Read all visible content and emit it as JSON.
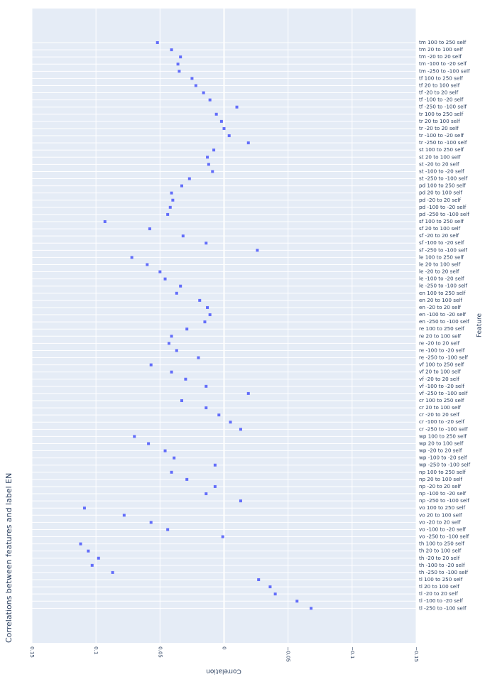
{
  "chart_data": {
    "type": "scatter",
    "title": "Correlations between features and label EN",
    "xlabel": "Correlation",
    "ylabel": "Feature",
    "x_range": [
      0.15,
      -0.15
    ],
    "x_ticks": [
      0.15,
      0.1,
      0.05,
      0,
      -0.05,
      -0.1,
      -0.15
    ],
    "x_tick_labels": [
      "0.15",
      "0.1",
      "0.05",
      "0",
      "−0.05",
      "−0.1",
      "−0.15"
    ],
    "grid": true,
    "marker_color": "#636efa",
    "plot_bg": "#e5ecf6",
    "points": [
      {
        "feature": "tm 100 to 250 self",
        "value": 0.052
      },
      {
        "feature": "tm 20 to 100 self",
        "value": 0.041
      },
      {
        "feature": "tm -20 to 20 self",
        "value": 0.034
      },
      {
        "feature": "tm -100 to -20 self",
        "value": 0.036
      },
      {
        "feature": "tm -250 to -100 self",
        "value": 0.035
      },
      {
        "feature": "tf 100 to 250 self",
        "value": 0.025
      },
      {
        "feature": "tf 20 to 100 self",
        "value": 0.022
      },
      {
        "feature": "tf -20 to 20 self",
        "value": 0.016
      },
      {
        "feature": "tf -100 to -20 self",
        "value": 0.011
      },
      {
        "feature": "tf -250 to -100 self",
        "value": -0.01
      },
      {
        "feature": "tr 100 to 250 self",
        "value": 0.006
      },
      {
        "feature": "tr 20 to 100 self",
        "value": 0.002
      },
      {
        "feature": "tr -20 to 20 self",
        "value": 0.0
      },
      {
        "feature": "tr -100 to -20 self",
        "value": -0.004
      },
      {
        "feature": "tr -250 to -100 self",
        "value": -0.019
      },
      {
        "feature": "st 100 to 250 self",
        "value": 0.008
      },
      {
        "feature": "st 20 to 100 self",
        "value": 0.013
      },
      {
        "feature": "st -20 to 20 self",
        "value": 0.012
      },
      {
        "feature": "st -100 to -20 self",
        "value": 0.009
      },
      {
        "feature": "st -250 to -100 self",
        "value": 0.027
      },
      {
        "feature": "pd 100 to 250 self",
        "value": 0.033
      },
      {
        "feature": "pd 20 to 100 self",
        "value": 0.041
      },
      {
        "feature": "pd -20 to 20 self",
        "value": 0.04
      },
      {
        "feature": "pd -100 to -20 self",
        "value": 0.042
      },
      {
        "feature": "pd -250 to -100 self",
        "value": 0.044
      },
      {
        "feature": "sf 100 to 250 self",
        "value": 0.093
      },
      {
        "feature": "sf 20 to 100 self",
        "value": 0.058
      },
      {
        "feature": "sf -20 to 20 self",
        "value": 0.032
      },
      {
        "feature": "sf -100 to -20 self",
        "value": 0.014
      },
      {
        "feature": "sf -250 to -100 self",
        "value": -0.026
      },
      {
        "feature": "le 100 to 250 self",
        "value": 0.072
      },
      {
        "feature": "le 20 to 100 self",
        "value": 0.06
      },
      {
        "feature": "le -20 to 20 self",
        "value": 0.05
      },
      {
        "feature": "le -100 to -20 self",
        "value": 0.046
      },
      {
        "feature": "le -250 to -100 self",
        "value": 0.034
      },
      {
        "feature": "en 100 to 250 self",
        "value": 0.037
      },
      {
        "feature": "en 20 to 100 self",
        "value": 0.019
      },
      {
        "feature": "en -20 to 20 self",
        "value": 0.013
      },
      {
        "feature": "en -100 to -20 self",
        "value": 0.011
      },
      {
        "feature": "en -250 to -100 self",
        "value": 0.015
      },
      {
        "feature": "re 100 to 250 self",
        "value": 0.029
      },
      {
        "feature": "re 20 to 100 self",
        "value": 0.041
      },
      {
        "feature": "re -20 to 20 self",
        "value": 0.043
      },
      {
        "feature": "re -100 to -20 self",
        "value": 0.037
      },
      {
        "feature": "re -250 to -100 self",
        "value": 0.02
      },
      {
        "feature": "vf 100 to 250 self",
        "value": 0.057
      },
      {
        "feature": "vf 20 to 100 self",
        "value": 0.041
      },
      {
        "feature": "vf -20 to 20 self",
        "value": 0.03
      },
      {
        "feature": "vf -100 to -20 self",
        "value": 0.014
      },
      {
        "feature": "vf -250 to -100 self",
        "value": -0.019
      },
      {
        "feature": "cr 100 to 250 self",
        "value": 0.033
      },
      {
        "feature": "cr 20 to 100 self",
        "value": 0.014
      },
      {
        "feature": "cr -20 to 20 self",
        "value": 0.004
      },
      {
        "feature": "cr -100 to -20 self",
        "value": -0.005
      },
      {
        "feature": "cr -250 to -100 self",
        "value": -0.013
      },
      {
        "feature": "wp 100 to 250 self",
        "value": 0.07
      },
      {
        "feature": "wp 20 to 100 self",
        "value": 0.059
      },
      {
        "feature": "wp -20 to 20 self",
        "value": 0.046
      },
      {
        "feature": "wp -100 to -20 self",
        "value": 0.039
      },
      {
        "feature": "wp -250 to -100 self",
        "value": 0.007
      },
      {
        "feature": "np 100 to 250 self",
        "value": 0.041
      },
      {
        "feature": "np 20 to 100 self",
        "value": 0.029
      },
      {
        "feature": "np -20 to 20 self",
        "value": 0.007
      },
      {
        "feature": "np -100 to -20 self",
        "value": 0.014
      },
      {
        "feature": "np -250 to -100 self",
        "value": -0.013
      },
      {
        "feature": "vo 100 to 250 self",
        "value": 0.109
      },
      {
        "feature": "vo 20 to 100 self",
        "value": 0.078
      },
      {
        "feature": "vo -20 to 20 self",
        "value": 0.057
      },
      {
        "feature": "vo -100 to -20 self",
        "value": 0.044
      },
      {
        "feature": "vo -250 to -100 self",
        "value": 0.001
      },
      {
        "feature": "th 100 to 250 self",
        "value": 0.112
      },
      {
        "feature": "th 20 to 100 self",
        "value": 0.106
      },
      {
        "feature": "th -20 to 20 self",
        "value": 0.098
      },
      {
        "feature": "th -100 to -20 self",
        "value": 0.103
      },
      {
        "feature": "th -250 to -100 self",
        "value": 0.087
      },
      {
        "feature": "tl 100 to 250 self",
        "value": -0.027
      },
      {
        "feature": "tl 20 to 100 self",
        "value": -0.036
      },
      {
        "feature": "tl -20 to 20 self",
        "value": -0.04
      },
      {
        "feature": "tl -100 to -20 self",
        "value": -0.057
      },
      {
        "feature": "tl -250 to -100 self",
        "value": -0.068
      }
    ]
  }
}
